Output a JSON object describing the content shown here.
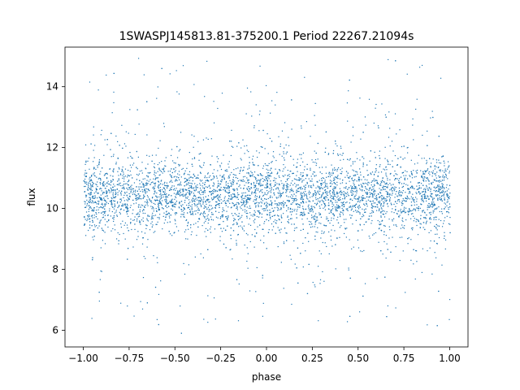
{
  "chart_data": {
    "type": "scatter",
    "title": "1SWASPJ145813.81-375200.1 Period 22267.21094s",
    "xlabel": "phase",
    "ylabel": "flux",
    "xlim": [
      -1.1,
      1.1
    ],
    "ylim": [
      5.45,
      15.3
    ],
    "x_ticks": [
      -1.0,
      -0.75,
      -0.5,
      -0.25,
      0.0,
      0.25,
      0.5,
      0.75,
      1.0
    ],
    "x_tick_labels": [
      "−1.00",
      "−0.75",
      "−0.50",
      "−0.25",
      "0.00",
      "0.25",
      "0.50",
      "0.75",
      "1.00"
    ],
    "y_ticks": [
      6,
      8,
      10,
      12,
      14
    ],
    "y_tick_labels": [
      "6",
      "8",
      "10",
      "12",
      "14"
    ],
    "grid": false,
    "marker_color": "#1f77b4",
    "series": [
      {
        "phase_range": [
          -1.0,
          1.0
        ],
        "flux_core": [
          9.2,
          11.9
        ],
        "flux_median": 10.45,
        "flux_extent": [
          5.9,
          15.0
        ],
        "note_points": "dense phase-folded light curve; points sampled uniformly across phase"
      }
    ]
  }
}
